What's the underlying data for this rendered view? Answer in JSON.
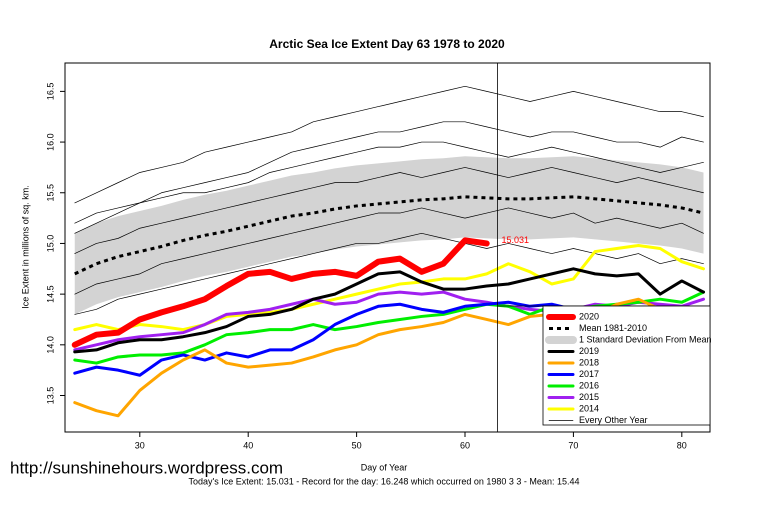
{
  "chart_data": {
    "type": "line",
    "title": "Arctic Sea Ice Extent Day 63 1978 to 2020",
    "x_label": "Day of Year",
    "y_label": "Ice Extent in millions of sq. km.",
    "footer": "Today's Ice Extent: 15.031  - Record for the day: 16.248 which occurred on 1980 3 3  - Mean: 15.44",
    "watermark": "http://sunshinehours.wordpress.com",
    "x": [
      24,
      26,
      28,
      30,
      32,
      34,
      36,
      38,
      40,
      42,
      44,
      46,
      48,
      50,
      52,
      54,
      56,
      58,
      60,
      62,
      64,
      66,
      68,
      70,
      72,
      74,
      76,
      78,
      80,
      82
    ],
    "xlim": [
      23.1,
      82.6
    ],
    "ylim": [
      13.14,
      16.78
    ],
    "xticks": [
      30,
      40,
      50,
      60,
      70,
      80
    ],
    "yticks": [
      13.5,
      {
        "value": 14,
        "label": "14.0"
      },
      14.5,
      {
        "value": 15,
        "label": "15.0"
      },
      15.5,
      {
        "value": 16,
        "label": "16.0"
      },
      16.5
    ],
    "band": {
      "name": "1 Standard Deviation From Mean",
      "color": "#d3d3d3",
      "upper": [
        15.1,
        15.2,
        15.27,
        15.32,
        15.37,
        15.43,
        15.48,
        15.52,
        15.57,
        15.62,
        15.67,
        15.7,
        15.74,
        15.77,
        15.79,
        15.81,
        15.83,
        15.84,
        15.86,
        15.85,
        15.84,
        15.84,
        15.85,
        15.86,
        15.84,
        15.82,
        15.8,
        15.78,
        15.75,
        15.7
      ],
      "lower": [
        14.3,
        14.4,
        14.47,
        14.52,
        14.57,
        14.63,
        14.68,
        14.72,
        14.77,
        14.82,
        14.87,
        14.9,
        14.94,
        14.97,
        14.99,
        15.01,
        15.03,
        15.04,
        15.06,
        15.05,
        15.04,
        15.04,
        15.05,
        15.06,
        15.04,
        15.02,
        15.0,
        14.98,
        14.95,
        14.9
      ]
    },
    "mean": {
      "name": "Mean 1981-2010",
      "color": "#000000",
      "values": [
        14.7,
        14.8,
        14.87,
        14.92,
        14.97,
        15.03,
        15.08,
        15.12,
        15.17,
        15.22,
        15.27,
        15.3,
        15.34,
        15.37,
        15.39,
        15.41,
        15.43,
        15.44,
        15.46,
        15.45,
        15.44,
        15.44,
        15.45,
        15.46,
        15.44,
        15.42,
        15.4,
        15.38,
        15.35,
        15.3
      ]
    },
    "series": [
      {
        "name": "2020",
        "color": "#ff0000",
        "width": 6,
        "values": [
          14.0,
          14.1,
          14.12,
          14.25,
          14.32,
          14.38,
          14.45,
          14.58,
          14.7,
          14.72,
          14.65,
          14.7,
          14.72,
          14.68,
          14.82,
          14.85,
          14.72,
          14.8,
          15.03,
          15.0,
          null,
          null,
          null,
          null,
          null,
          null,
          null,
          null,
          null,
          null
        ]
      },
      {
        "name": "2019",
        "color": "#000000",
        "width": 3,
        "values": [
          13.93,
          13.95,
          14.02,
          14.05,
          14.05,
          14.08,
          14.12,
          14.18,
          14.28,
          14.3,
          14.35,
          14.45,
          14.5,
          14.6,
          14.7,
          14.72,
          14.62,
          14.55,
          14.55,
          14.58,
          14.6,
          14.65,
          14.7,
          14.75,
          14.7,
          14.68,
          14.7,
          14.5,
          14.63,
          14.52
        ]
      },
      {
        "name": "2018",
        "color": "#ffa500",
        "width": 3,
        "values": [
          13.43,
          13.35,
          13.3,
          13.55,
          13.72,
          13.85,
          13.95,
          13.82,
          13.78,
          13.8,
          13.82,
          13.88,
          13.95,
          14.0,
          14.1,
          14.15,
          14.18,
          14.22,
          14.3,
          14.25,
          14.2,
          14.28,
          14.3,
          14.32,
          14.3,
          14.4,
          14.45,
          14.35,
          14.3,
          14.25
        ]
      },
      {
        "name": "2017",
        "color": "#0000ff",
        "width": 3,
        "values": [
          13.72,
          13.78,
          13.75,
          13.7,
          13.85,
          13.9,
          13.85,
          13.92,
          13.88,
          13.95,
          13.95,
          14.05,
          14.2,
          14.3,
          14.38,
          14.4,
          14.35,
          14.32,
          14.38,
          14.4,
          14.42,
          14.38,
          14.4,
          14.35,
          14.32,
          14.3,
          14.32,
          14.3,
          14.2,
          14.15
        ]
      },
      {
        "name": "2016",
        "color": "#00ee00",
        "width": 3,
        "values": [
          13.85,
          13.82,
          13.88,
          13.9,
          13.9,
          13.92,
          14.0,
          14.1,
          14.12,
          14.15,
          14.15,
          14.2,
          14.15,
          14.18,
          14.22,
          14.25,
          14.28,
          14.3,
          14.35,
          14.4,
          14.38,
          14.3,
          14.38,
          14.35,
          14.38,
          14.4,
          14.42,
          14.45,
          14.42,
          14.52
        ]
      },
      {
        "name": "2015",
        "color": "#a020f0",
        "width": 3,
        "values": [
          13.95,
          14.0,
          14.05,
          14.08,
          14.1,
          14.12,
          14.2,
          14.3,
          14.32,
          14.35,
          14.4,
          14.45,
          14.4,
          14.42,
          14.5,
          14.52,
          14.5,
          14.52,
          14.45,
          14.42,
          14.38,
          14.35,
          14.33,
          14.35,
          14.4,
          14.38,
          14.42,
          14.4,
          14.38,
          14.45
        ]
      },
      {
        "name": "2014",
        "color": "#ffff00",
        "width": 3,
        "values": [
          14.15,
          14.2,
          14.15,
          14.2,
          14.18,
          14.15,
          14.2,
          14.28,
          14.3,
          14.32,
          14.35,
          14.4,
          14.45,
          14.5,
          14.55,
          14.6,
          14.62,
          14.65,
          14.65,
          14.7,
          14.8,
          14.72,
          14.6,
          14.65,
          14.92,
          14.95,
          14.98,
          14.95,
          14.82,
          14.75
        ]
      }
    ],
    "other_years": {
      "name": "Every Other Year",
      "color": "#000000",
      "lines": [
        [
          15.4,
          15.5,
          15.6,
          15.7,
          15.75,
          15.8,
          15.9,
          15.95,
          16.0,
          16.05,
          16.1,
          16.2,
          16.25,
          16.3,
          16.35,
          16.4,
          16.45,
          16.5,
          16.55,
          16.5,
          16.45,
          16.4,
          16.45,
          16.5,
          16.45,
          16.4,
          16.35,
          16.3,
          16.3,
          16.25
        ],
        [
          15.1,
          15.2,
          15.3,
          15.4,
          15.5,
          15.55,
          15.6,
          15.65,
          15.7,
          15.8,
          15.9,
          15.95,
          16.0,
          16.05,
          16.1,
          16.1,
          16.15,
          16.2,
          16.2,
          16.15,
          16.1,
          16.05,
          16.1,
          16.1,
          16.05,
          16.0,
          16.0,
          15.95,
          16.05,
          16.0
        ],
        [
          14.9,
          15.0,
          15.05,
          15.15,
          15.2,
          15.25,
          15.3,
          15.35,
          15.4,
          15.45,
          15.5,
          15.55,
          15.6,
          15.6,
          15.65,
          15.7,
          15.65,
          15.7,
          15.75,
          15.7,
          15.65,
          15.7,
          15.75,
          15.7,
          15.65,
          15.6,
          15.65,
          15.6,
          15.55,
          15.5
        ],
        [
          14.5,
          14.6,
          14.65,
          14.7,
          14.8,
          14.85,
          14.9,
          14.95,
          15.0,
          15.05,
          15.1,
          15.15,
          15.2,
          15.25,
          15.3,
          15.3,
          15.35,
          15.3,
          15.25,
          15.3,
          15.35,
          15.3,
          15.25,
          15.3,
          15.2,
          15.25,
          15.2,
          15.15,
          15.2,
          15.1
        ],
        [
          14.3,
          14.35,
          14.45,
          14.5,
          14.55,
          14.6,
          14.65,
          14.7,
          14.75,
          14.8,
          14.85,
          14.9,
          14.95,
          15.0,
          15.0,
          15.05,
          15.1,
          15.05,
          15.0,
          14.95,
          15.0,
          14.95,
          14.9,
          14.95,
          14.9,
          14.85,
          14.9,
          14.8,
          14.85,
          14.8
        ],
        [
          15.2,
          15.3,
          15.35,
          15.4,
          15.45,
          15.5,
          15.5,
          15.55,
          15.6,
          15.7,
          15.75,
          15.8,
          15.85,
          15.9,
          15.95,
          15.95,
          16.0,
          16.0,
          15.95,
          15.9,
          15.85,
          15.9,
          15.95,
          15.9,
          15.85,
          15.8,
          15.75,
          15.7,
          15.75,
          15.8
        ]
      ]
    },
    "marker_x": 63,
    "annotation": {
      "text": "15.031",
      "x": 63,
      "y": 15.03,
      "color": "#ff0000"
    }
  }
}
